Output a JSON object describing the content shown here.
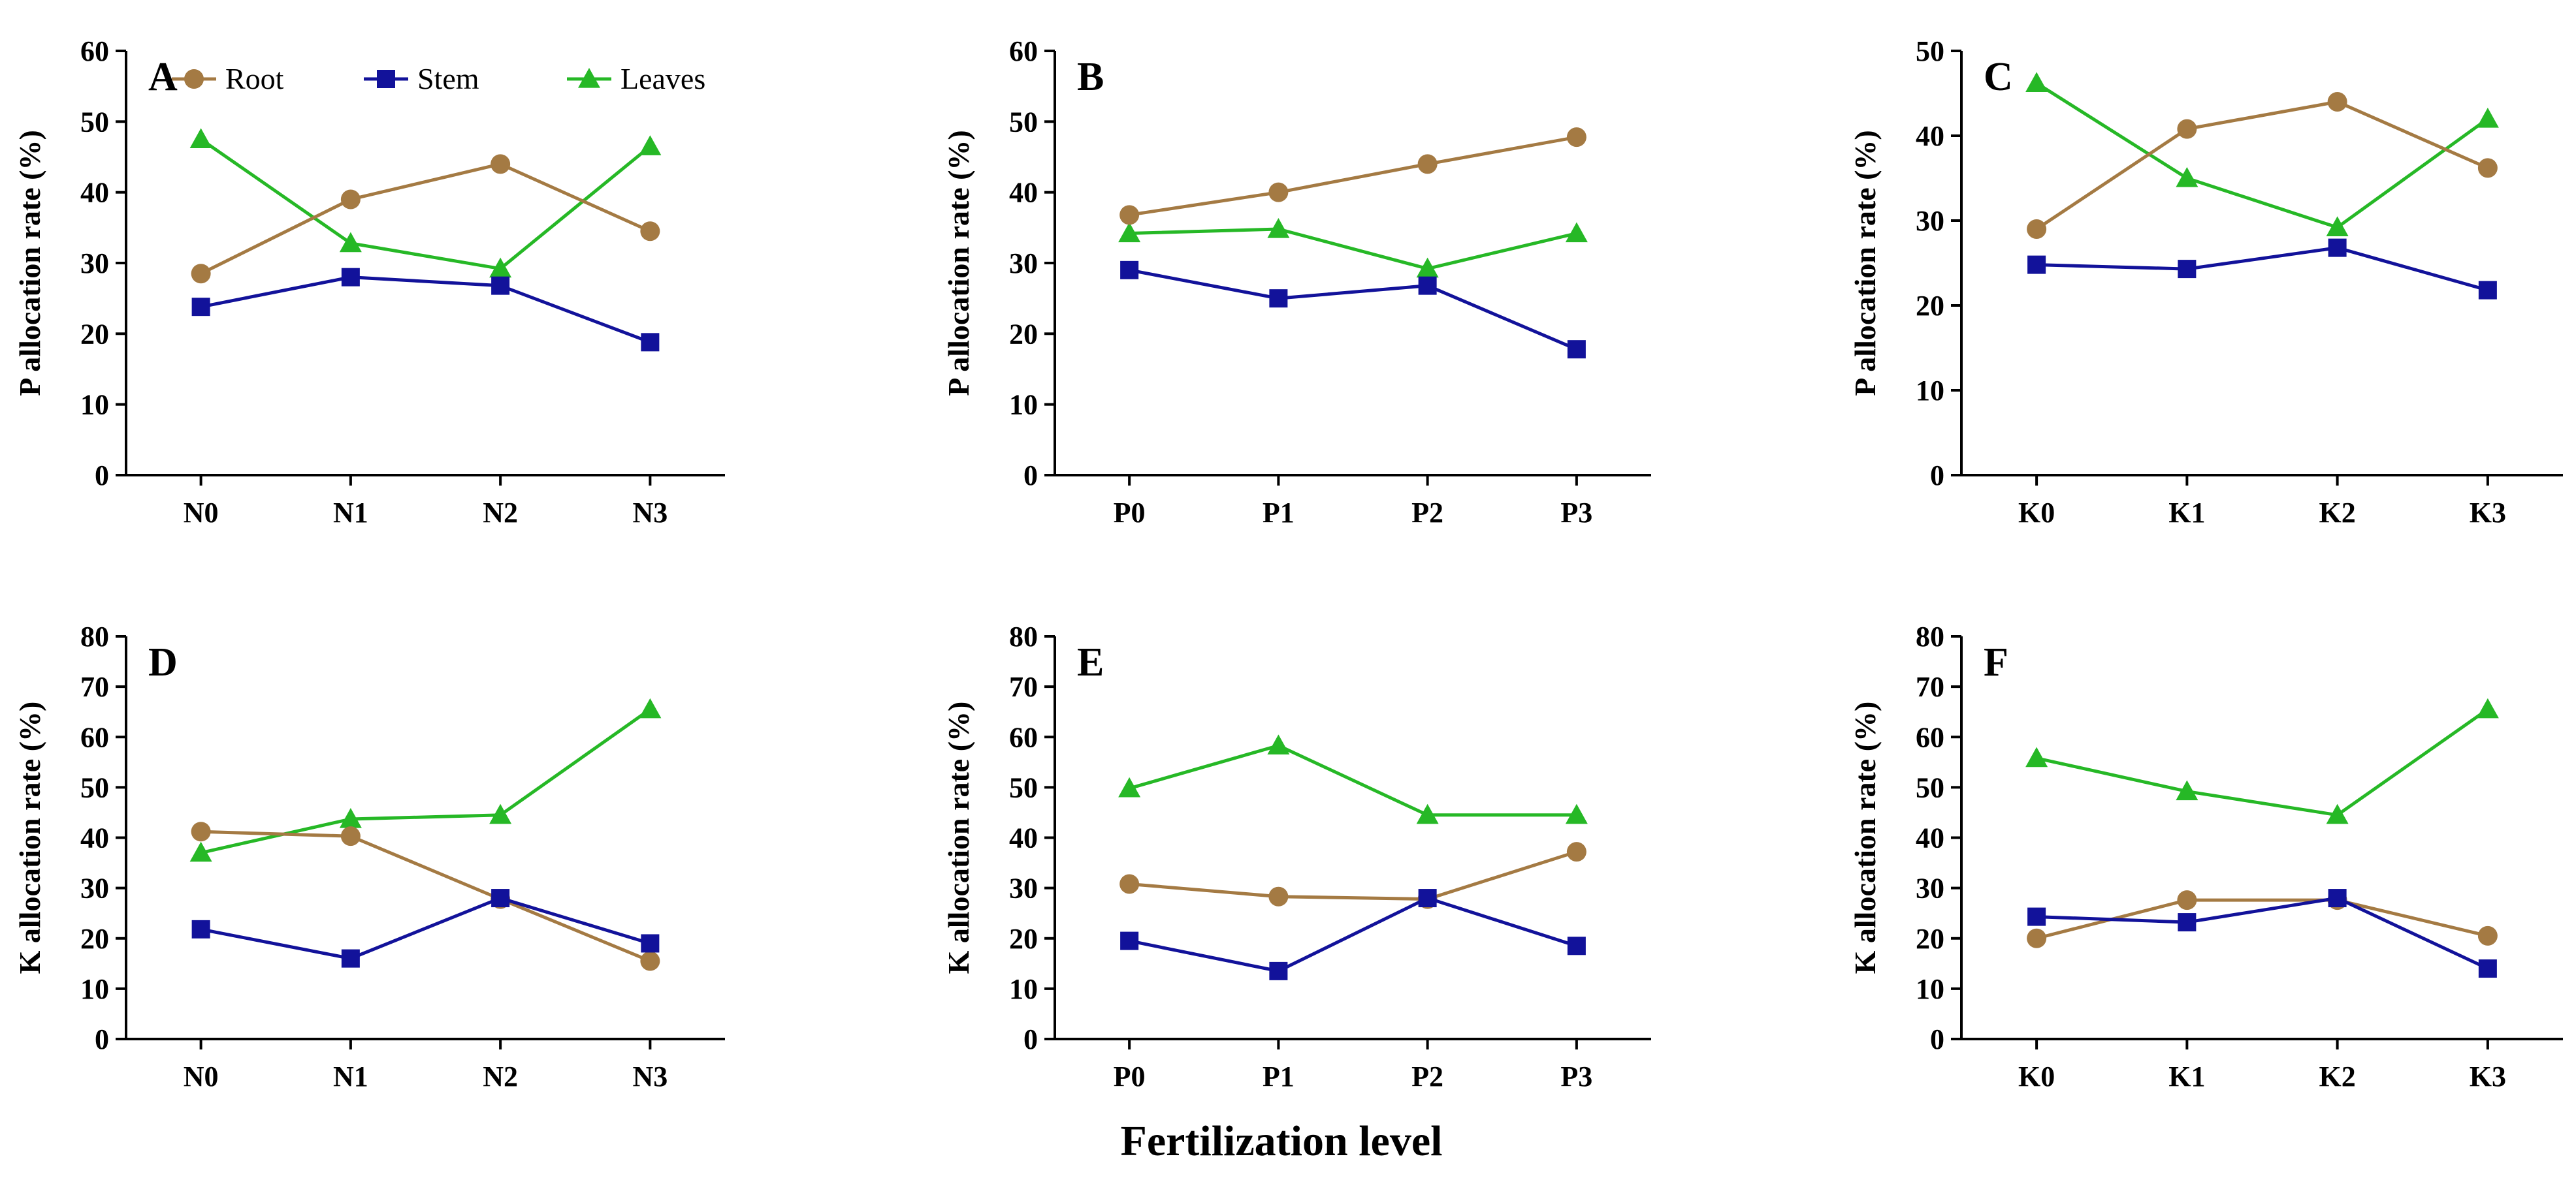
{
  "figure": {
    "xlabel": "Fertilization level",
    "legend": {
      "position": "top of panel A",
      "entries": [
        {
          "name": "Root",
          "marker": "circle",
          "color": "#a47a43"
        },
        {
          "name": "Stem",
          "marker": "square",
          "color": "#12129a"
        },
        {
          "name": "Leaves",
          "marker": "triangle",
          "color": "#26b826"
        }
      ]
    }
  },
  "chart_data": [
    {
      "type": "line",
      "panel": "A",
      "categories": [
        "N0",
        "N1",
        "N2",
        "N3"
      ],
      "ylabel": "P allocation rate (%)",
      "ylim": [
        0,
        60
      ],
      "yticks": [
        0,
        10,
        20,
        30,
        40,
        50,
        60
      ],
      "series": [
        {
          "name": "Root",
          "values": [
            28.5,
            39,
            44,
            34.5
          ]
        },
        {
          "name": "Stem",
          "values": [
            23.8,
            28,
            26.8,
            18.8
          ]
        },
        {
          "name": "Leaves",
          "values": [
            47.5,
            32.8,
            29.2,
            46.5
          ]
        }
      ]
    },
    {
      "type": "line",
      "panel": "B",
      "categories": [
        "P0",
        "P1",
        "P2",
        "P3"
      ],
      "ylabel": "P allocation rate (%)",
      "ylim": [
        0,
        60
      ],
      "yticks": [
        0,
        10,
        20,
        30,
        40,
        50,
        60
      ],
      "series": [
        {
          "name": "Root",
          "values": [
            36.8,
            40,
            44,
            47.8
          ]
        },
        {
          "name": "Stem",
          "values": [
            29,
            25,
            26.8,
            17.8
          ]
        },
        {
          "name": "Leaves",
          "values": [
            34.2,
            34.8,
            29.2,
            34.2
          ]
        }
      ]
    },
    {
      "type": "line",
      "panel": "C",
      "categories": [
        "K0",
        "K1",
        "K2",
        "K3"
      ],
      "ylabel": "P allocation rate (%)",
      "ylim": [
        0,
        50
      ],
      "yticks": [
        0,
        10,
        20,
        30,
        40,
        50
      ],
      "series": [
        {
          "name": "Root",
          "values": [
            29,
            40.8,
            44,
            36.2
          ]
        },
        {
          "name": "Stem",
          "values": [
            24.8,
            24.3,
            26.8,
            21.8
          ]
        },
        {
          "name": "Leaves",
          "values": [
            46.2,
            35,
            29.2,
            42
          ]
        }
      ]
    },
    {
      "type": "line",
      "panel": "D",
      "categories": [
        "N0",
        "N1",
        "N2",
        "N3"
      ],
      "ylabel": "K allocation rate (%)",
      "ylim": [
        0,
        80
      ],
      "yticks": [
        0,
        10,
        20,
        30,
        40,
        50,
        60,
        70,
        80
      ],
      "series": [
        {
          "name": "Root",
          "values": [
            41.2,
            40.3,
            27.8,
            15.5
          ]
        },
        {
          "name": "Stem",
          "values": [
            21.8,
            16,
            28,
            19
          ]
        },
        {
          "name": "Leaves",
          "values": [
            37,
            43.7,
            44.5,
            65.5
          ]
        }
      ]
    },
    {
      "type": "line",
      "panel": "E",
      "categories": [
        "P0",
        "P1",
        "P2",
        "P3"
      ],
      "ylabel": "K allocation rate (%)",
      "ylim": [
        0,
        80
      ],
      "yticks": [
        0,
        10,
        20,
        30,
        40,
        50,
        60,
        70,
        80
      ],
      "series": [
        {
          "name": "Root",
          "values": [
            30.8,
            28.3,
            27.8,
            37.2
          ]
        },
        {
          "name": "Stem",
          "values": [
            19.5,
            13.5,
            28,
            18.5
          ]
        },
        {
          "name": "Leaves",
          "values": [
            49.8,
            58.3,
            44.5,
            44.5
          ]
        }
      ]
    },
    {
      "type": "line",
      "panel": "F",
      "categories": [
        "K0",
        "K1",
        "K2",
        "K3"
      ],
      "ylabel": "K allocation rate (%)",
      "ylim": [
        0,
        80
      ],
      "yticks": [
        0,
        10,
        20,
        30,
        40,
        50,
        60,
        70,
        80
      ],
      "series": [
        {
          "name": "Root",
          "values": [
            20,
            27.6,
            27.6,
            20.5
          ]
        },
        {
          "name": "Stem",
          "values": [
            24.3,
            23.2,
            28,
            14
          ]
        },
        {
          "name": "Leaves",
          "values": [
            55.8,
            49.2,
            44.5,
            65.5
          ]
        }
      ]
    }
  ]
}
